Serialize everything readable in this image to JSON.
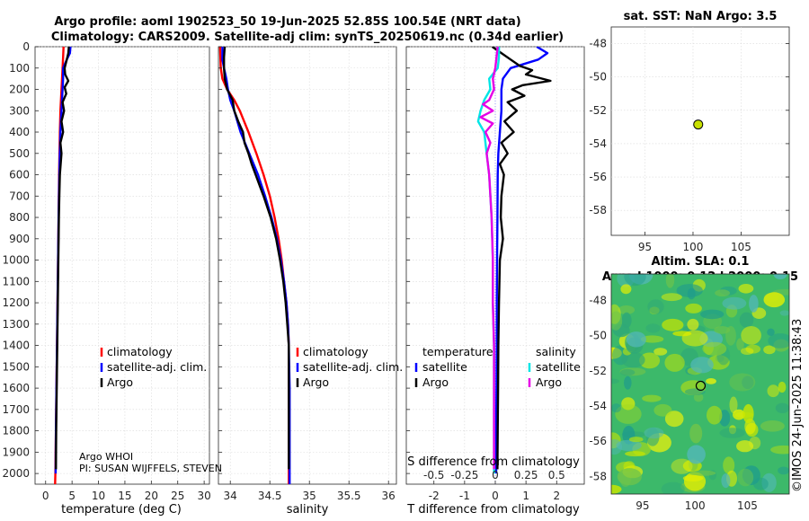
{
  "header": {
    "title_line1": "Argo profile: aoml 1902523_50 19-Jun-2025 52.85S 100.54E (NRT data)",
    "title_line2": "Climatology: CARS2009. Satellite-adj clim: synTS_20250619.nc (0.34d earlier)"
  },
  "depth_ticks": [
    "0",
    "100",
    "200",
    "300",
    "400",
    "500",
    "600",
    "700",
    "800",
    "900",
    "1000",
    "1100",
    "1200",
    "1300",
    "1400",
    "1500",
    "1600",
    "1700",
    "1800",
    "1900",
    "2000"
  ],
  "colors": {
    "climatology": "#ff0000",
    "satellite": "#0000ff",
    "argo": "#000000",
    "sat_salt": "#00e5e5",
    "argo_salt": "#e600e6",
    "marker": "#c8e000"
  },
  "chart_data": [
    {
      "type": "line",
      "name": "temperature",
      "xlabel": "temperature (deg C)",
      "xlim": [
        -2,
        31
      ],
      "ylim": [
        2050,
        0
      ],
      "xticks": [
        0,
        5,
        10,
        15,
        20,
        25,
        30
      ],
      "xtick_labels": [
        "0",
        "5",
        "10",
        "15",
        "20",
        "25",
        "30"
      ],
      "legend": [
        "climatology",
        "satellite-adj. clim.",
        "Argo"
      ],
      "footer": [
        "Argo WHOI",
        "PI: SUSAN WIJFFELS, STEVEN"
      ],
      "series": [
        {
          "name": "climatology",
          "depth": [
            0,
            50,
            100,
            200,
            300,
            400,
            600,
            800,
            1000,
            1200,
            1400,
            1600,
            1800,
            2000,
            2050
          ],
          "values": [
            3.4,
            3.3,
            3.2,
            3.0,
            2.8,
            2.7,
            2.55,
            2.45,
            2.35,
            2.25,
            2.15,
            2.05,
            1.95,
            1.85,
            1.8
          ]
        },
        {
          "name": "satellite-adj. clim.",
          "depth": [
            0,
            30,
            60,
            100,
            150,
            200,
            300,
            400,
            600,
            800,
            1000,
            1200,
            1400,
            1600,
            1800,
            2000
          ],
          "values": [
            4.7,
            4.6,
            4.0,
            3.3,
            3.3,
            3.2,
            3.0,
            2.8,
            2.6,
            2.45,
            2.35,
            2.25,
            2.15,
            2.05,
            1.95,
            1.9
          ]
        },
        {
          "name": "Argo",
          "depth": [
            0,
            30,
            60,
            100,
            130,
            160,
            190,
            220,
            260,
            300,
            350,
            400,
            450,
            500,
            600,
            700,
            800,
            1000,
            1200,
            1400,
            1600,
            1800,
            1980
          ],
          "values": [
            4.4,
            4.3,
            4.0,
            3.6,
            3.7,
            4.3,
            3.6,
            3.9,
            3.2,
            3.5,
            3.0,
            3.3,
            2.8,
            3.0,
            2.7,
            2.6,
            2.5,
            2.4,
            2.3,
            2.2,
            2.1,
            2.0,
            1.95
          ]
        }
      ]
    },
    {
      "type": "line",
      "name": "salinity",
      "xlabel": "salinity",
      "xlim": [
        33.85,
        36.1
      ],
      "ylim": [
        2050,
        0
      ],
      "xticks": [
        34,
        34.5,
        35,
        35.5,
        36
      ],
      "xtick_labels": [
        "34",
        "34.5",
        "35",
        "35.5",
        "36"
      ],
      "legend": [
        "climatology",
        "satellite-adj. clim.",
        "Argo"
      ],
      "series": [
        {
          "name": "climatology",
          "depth": [
            0,
            100,
            150,
            200,
            250,
            300,
            400,
            500,
            600,
            700,
            800,
            900,
            1000,
            1100,
            1200,
            1300,
            1400,
            1600,
            1800,
            2050
          ],
          "values": [
            33.87,
            33.88,
            33.9,
            33.96,
            34.05,
            34.12,
            34.23,
            34.33,
            34.42,
            34.5,
            34.56,
            34.61,
            34.65,
            34.68,
            34.71,
            34.73,
            34.74,
            34.74,
            34.74,
            34.74
          ]
        },
        {
          "name": "satellite-adj. clim.",
          "depth": [
            0,
            60,
            100,
            150,
            200,
            250,
            300,
            400,
            500,
            600,
            700,
            800,
            900,
            1000,
            1100,
            1200,
            1300,
            1400,
            1600,
            1800,
            2050
          ],
          "values": [
            33.9,
            33.9,
            33.92,
            33.95,
            33.97,
            34.0,
            34.05,
            34.13,
            34.24,
            34.35,
            34.44,
            34.52,
            34.59,
            34.64,
            34.68,
            34.71,
            34.73,
            34.74,
            34.75,
            34.75,
            34.75
          ]
        },
        {
          "name": "Argo",
          "depth": [
            0,
            50,
            100,
            150,
            200,
            250,
            300,
            350,
            400,
            450,
            500,
            550,
            600,
            650,
            700,
            800,
            900,
            1000,
            1100,
            1200,
            1300,
            1400,
            1600,
            1800,
            1980
          ],
          "values": [
            33.93,
            33.92,
            33.92,
            33.93,
            33.96,
            34.03,
            34.05,
            34.1,
            34.16,
            34.18,
            34.23,
            34.27,
            34.32,
            34.37,
            34.42,
            34.51,
            34.58,
            34.63,
            34.67,
            34.7,
            34.72,
            34.74,
            34.74,
            34.74,
            34.74
          ]
        }
      ]
    },
    {
      "type": "line",
      "name": "difference from climatology",
      "xlabel": "T difference from climatology",
      "xlabel_top": "S difference from climatology",
      "xlim": [
        -2.9,
        2.9
      ],
      "ylim": [
        2050,
        0
      ],
      "xticks": [
        -2,
        -1,
        0,
        1,
        2
      ],
      "xtick_labels": [
        "-2",
        "-1",
        "0",
        "1",
        "2"
      ],
      "top_ticks": [
        -0.5,
        -0.25,
        0,
        0.25,
        0.5
      ],
      "top_tick_labels": [
        "-0.5",
        "-0.25",
        "0",
        "0.25",
        "0.5"
      ],
      "legend_temperature": [
        "temperature",
        "satellite",
        "Argo"
      ],
      "legend_salinity": [
        "salinity",
        "satellite",
        "Argo"
      ],
      "series": [
        {
          "name": "temperature satellite",
          "depth": [
            0,
            30,
            60,
            100,
            150,
            200,
            300,
            400,
            500,
            600,
            800,
            1000,
            1200,
            1400,
            1600,
            1800,
            2000
          ],
          "values": [
            1.35,
            1.7,
            1.4,
            0.5,
            0.25,
            0.2,
            0.2,
            0.15,
            0.1,
            0.08,
            0.07,
            0.06,
            0.05,
            0.05,
            0.04,
            0.03,
            0.03
          ]
        },
        {
          "name": "temperature Argo",
          "depth": [
            0,
            30,
            60,
            90,
            110,
            130,
            160,
            180,
            200,
            230,
            260,
            300,
            350,
            400,
            450,
            500,
            550,
            600,
            700,
            800,
            900,
            1000,
            1200,
            1400,
            1600,
            1800,
            1980
          ],
          "values": [
            -0.1,
            0.2,
            0.5,
            0.8,
            1.2,
            1.0,
            1.8,
            0.9,
            0.55,
            0.95,
            0.4,
            0.7,
            0.3,
            0.6,
            0.2,
            0.4,
            0.15,
            0.28,
            0.2,
            0.18,
            0.25,
            0.15,
            0.12,
            0.1,
            0.09,
            0.08,
            0.07
          ]
        },
        {
          "name": "salinity satellite",
          "depth": [
            0,
            50,
            100,
            150,
            200,
            250,
            300,
            350,
            400,
            500,
            600,
            800,
            1000,
            1200,
            1400,
            1600,
            1800,
            2000
          ],
          "values": [
            0.03,
            0.03,
            0.02,
            -0.05,
            -0.04,
            -0.09,
            -0.12,
            -0.14,
            -0.09,
            -0.07,
            -0.05,
            -0.03,
            -0.02,
            -0.02,
            -0.01,
            -0.01,
            -0.01,
            -0.01
          ]
        },
        {
          "name": "salinity Argo",
          "depth": [
            0,
            50,
            100,
            150,
            200,
            250,
            270,
            300,
            330,
            360,
            400,
            450,
            500,
            600,
            800,
            1000,
            1200,
            1400,
            1600,
            1800,
            1980
          ],
          "values": [
            0.02,
            0.01,
            0.0,
            -0.02,
            -0.01,
            -0.05,
            -0.1,
            -0.02,
            -0.12,
            -0.02,
            -0.08,
            -0.04,
            -0.07,
            -0.05,
            -0.03,
            -0.02,
            -0.02,
            -0.01,
            -0.01,
            -0.01,
            -0.01
          ]
        }
      ]
    },
    {
      "type": "scatter",
      "name": "sat. SST map",
      "title": "sat. SST: NaN Argo: 3.5",
      "xlim": [
        91.5,
        110
      ],
      "ylim": [
        -59.5,
        -47
      ],
      "xticks": [
        95,
        100,
        105
      ],
      "xtick_labels": [
        "95",
        "100",
        "105"
      ],
      "yticks": [
        -48,
        -50,
        -52,
        -54,
        -56,
        -58
      ],
      "ytick_labels": [
        "-48",
        "-50",
        "-52",
        "-54",
        "-56",
        "-58"
      ],
      "points": [
        {
          "lon": 100.54,
          "lat": -52.85
        }
      ]
    },
    {
      "type": "heatmap",
      "name": "Altim. SLA map",
      "title_line1": "Altim. SLA: 0.1",
      "title_line2": "Argo h1000: 0.12 h2000: 0.15",
      "xlim": [
        92,
        109
      ],
      "ylim": [
        -59,
        -46.5
      ],
      "xticks": [
        95,
        100,
        105
      ],
      "xtick_labels": [
        "95",
        "100",
        "105"
      ],
      "yticks": [
        -48,
        -50,
        -52,
        -54,
        -56,
        -58
      ],
      "ytick_labels": [
        "-48",
        "-50",
        "-52",
        "-54",
        "-56",
        "-58"
      ],
      "points": [
        {
          "lon": 100.54,
          "lat": -52.85
        }
      ]
    }
  ],
  "credit": "©IMOS 24-Jun-2025 11:38:43"
}
